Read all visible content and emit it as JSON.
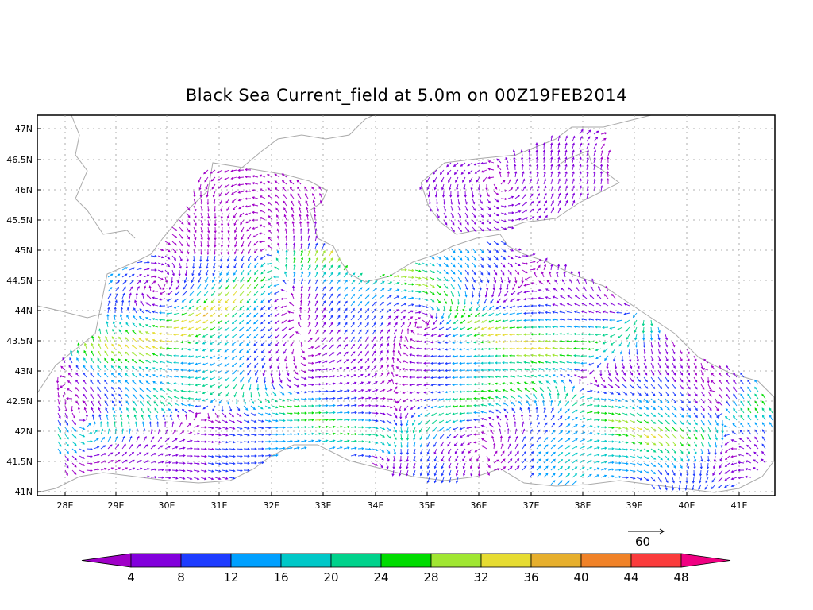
{
  "title": "Black Sea Current_field at 5.0m on 00Z19FEB2014",
  "lat_labels": [
    "47N",
    "46.5N",
    "46N",
    "45.5N",
    "45N",
    "44.5N",
    "44N",
    "43.5N",
    "43N",
    "42.5N",
    "42N",
    "41.5N",
    "41N"
  ],
  "lon_labels": [
    "28E",
    "29E",
    "30E",
    "31E",
    "32E",
    "33E",
    "34E",
    "35E",
    "36E",
    "37E",
    "38E",
    "39E",
    "40E",
    "41E"
  ],
  "reference_vector": "60",
  "colorbar": {
    "ticks": [
      "4",
      "8",
      "12",
      "16",
      "20",
      "24",
      "28",
      "32",
      "36",
      "40",
      "44",
      "48"
    ],
    "colors": [
      "#a000c8",
      "#8200dc",
      "#1e3cff",
      "#00a0ff",
      "#00c8c8",
      "#00d28c",
      "#00dc00",
      "#a0e632",
      "#e6dc32",
      "#e6af2d",
      "#f08228",
      "#fa3c3c",
      "#f00082"
    ]
  }
}
